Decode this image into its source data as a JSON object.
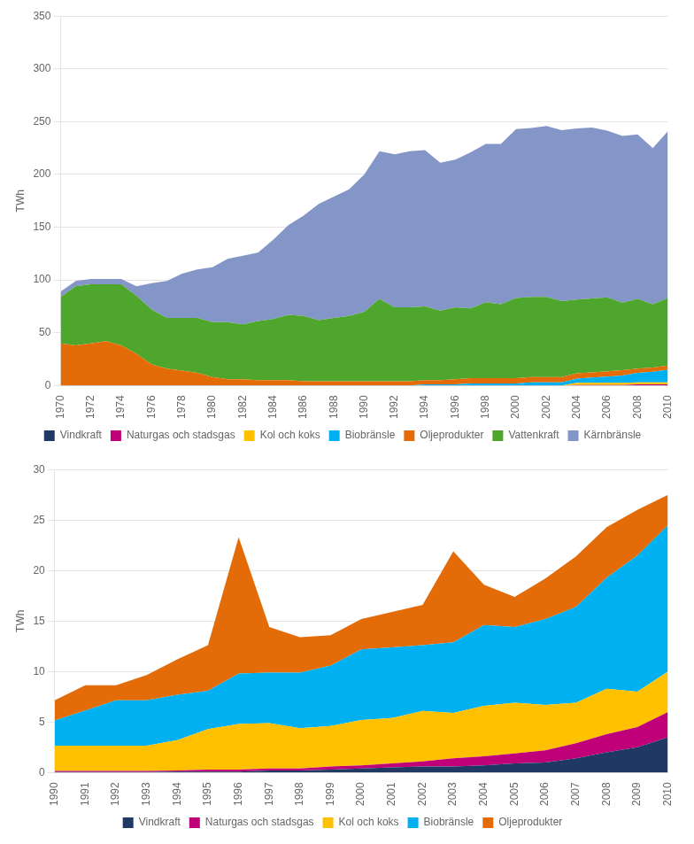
{
  "chart_data": [
    {
      "type": "area",
      "stacked": true,
      "ylabel": "TWh",
      "grid": true,
      "legend": "bottom",
      "x": [
        1970,
        1971,
        1972,
        1973,
        1974,
        1975,
        1976,
        1977,
        1978,
        1979,
        1980,
        1981,
        1982,
        1983,
        1984,
        1985,
        1986,
        1987,
        1988,
        1989,
        1990,
        1991,
        1992,
        1993,
        1994,
        1995,
        1996,
        1997,
        1998,
        1999,
        2000,
        2001,
        2002,
        2003,
        2004,
        2005,
        2006,
        2007,
        2008,
        2009,
        2010
      ],
      "series": [
        {
          "name": "Vindkraft",
          "color": "#1f3864",
          "values": [
            0,
            0,
            0,
            0,
            0,
            0,
            0,
            0,
            0,
            0,
            0,
            0,
            0,
            0,
            0,
            0,
            0,
            0,
            0,
            0,
            0,
            0,
            0,
            0,
            0,
            0,
            0,
            0,
            0,
            0,
            0,
            0,
            0,
            0,
            0,
            0,
            0,
            0,
            0,
            0,
            0
          ]
        },
        {
          "name": "Naturgas och stadsgas",
          "color": "#c00078",
          "values": [
            0,
            0,
            0,
            0,
            0,
            0,
            0,
            0,
            0,
            0,
            0,
            0,
            0,
            0,
            0,
            0,
            0,
            0,
            0,
            0,
            0,
            0,
            0,
            0,
            0,
            0,
            0,
            0,
            0,
            0,
            0,
            0,
            0,
            0,
            0.5,
            0.5,
            0.5,
            0.5,
            1,
            1,
            1
          ]
        },
        {
          "name": "Kol och koks",
          "color": "#ffc000",
          "values": [
            0,
            0,
            0,
            0,
            0,
            0,
            0,
            0,
            0,
            0,
            0,
            0,
            0,
            0,
            0,
            0,
            0,
            0,
            0,
            0,
            0,
            0,
            0,
            0,
            0,
            0,
            0,
            0,
            0,
            0,
            0,
            0,
            0,
            0,
            2,
            2,
            2,
            2,
            2,
            2,
            2
          ]
        },
        {
          "name": "Biobränsle",
          "color": "#00b0f0",
          "values": [
            0,
            0,
            0,
            0,
            0,
            0,
            0,
            0,
            0,
            0,
            0,
            0,
            0,
            0,
            0,
            0,
            0,
            0,
            0,
            0,
            0,
            0,
            0,
            0,
            1,
            1,
            1,
            2,
            2,
            2,
            2,
            3,
            3,
            3,
            4,
            5,
            6,
            7,
            9,
            10,
            12
          ]
        },
        {
          "name": "Oljeprodukter",
          "color": "#e36c09",
          "values": [
            40,
            38,
            40,
            42,
            38,
            30,
            20,
            16,
            14,
            12,
            8,
            6,
            6,
            5,
            5,
            5,
            4,
            4,
            4,
            4,
            4,
            4,
            4,
            4,
            4,
            4,
            5,
            5,
            5,
            5,
            5,
            5,
            5,
            5,
            5,
            5,
            5,
            5,
            4,
            4,
            4
          ]
        },
        {
          "name": "Vattenkraft",
          "color": "#4ea72c",
          "values": [
            44,
            56,
            56,
            54,
            58,
            55,
            52,
            48,
            50,
            52,
            52,
            54,
            52,
            56,
            58,
            62,
            62,
            58,
            60,
            62,
            66,
            78,
            70,
            70,
            70,
            66,
            68,
            66,
            72,
            70,
            76,
            76,
            76,
            72,
            70,
            70,
            70,
            64,
            66,
            60,
            64
          ]
        },
        {
          "name": "Kärnbränsle",
          "color": "#8496c8",
          "values": [
            5,
            5,
            5,
            5,
            5,
            9,
            25,
            35,
            42,
            46,
            52,
            60,
            65,
            65,
            75,
            85,
            95,
            110,
            115,
            120,
            130,
            140,
            145,
            148,
            148,
            140,
            140,
            148,
            150,
            152,
            160,
            160,
            162,
            162,
            162,
            162,
            158,
            158,
            156,
            148,
            158
          ]
        }
      ],
      "xlim": [
        1970,
        2010
      ],
      "xticks": [
        1970,
        1972,
        1974,
        1976,
        1978,
        1980,
        1982,
        1984,
        1986,
        1988,
        1990,
        1992,
        1994,
        1996,
        1998,
        2000,
        2002,
        2004,
        2006,
        2008,
        2010
      ],
      "ylim": [
        0,
        350
      ],
      "yticks": [
        0,
        50,
        100,
        150,
        200,
        250,
        300,
        350
      ]
    },
    {
      "type": "area",
      "stacked": true,
      "ylabel": "TWh",
      "grid": true,
      "legend": "bottom",
      "x": [
        1990,
        1991,
        1992,
        1993,
        1994,
        1995,
        1996,
        1997,
        1998,
        1999,
        2000,
        2001,
        2002,
        2003,
        2004,
        2005,
        2006,
        2007,
        2008,
        2009,
        2010
      ],
      "series": [
        {
          "name": "Vindkraft",
          "color": "#1f3864",
          "values": [
            0.05,
            0.05,
            0.05,
            0.05,
            0.1,
            0.1,
            0.1,
            0.2,
            0.2,
            0.3,
            0.4,
            0.5,
            0.6,
            0.6,
            0.7,
            0.9,
            1.0,
            1.4,
            2.0,
            2.5,
            3.5
          ]
        },
        {
          "name": "Naturgas och stadsgas",
          "color": "#c00078",
          "values": [
            0.1,
            0.1,
            0.1,
            0.1,
            0.1,
            0.2,
            0.2,
            0.2,
            0.2,
            0.3,
            0.3,
            0.4,
            0.5,
            0.8,
            0.9,
            1.0,
            1.2,
            1.5,
            1.8,
            2.0,
            2.5
          ]
        },
        {
          "name": "Kol och koks",
          "color": "#ffc000",
          "values": [
            2.5,
            2.5,
            2.5,
            2.5,
            3.0,
            4.0,
            4.5,
            4.5,
            4.0,
            4.0,
            4.5,
            4.5,
            5.0,
            4.5,
            5.0,
            5.0,
            4.5,
            4.0,
            4.5,
            3.5,
            4.0
          ]
        },
        {
          "name": "Biobränsle",
          "color": "#00b0f0",
          "values": [
            2.5,
            3.5,
            4.5,
            4.5,
            4.5,
            3.8,
            5.0,
            5.0,
            5.5,
            6.0,
            7.0,
            7.0,
            6.5,
            7.0,
            8.0,
            7.5,
            8.5,
            9.5,
            11.0,
            13.5,
            14.5
          ]
        },
        {
          "name": "Oljeprodukter",
          "color": "#e36c09",
          "values": [
            2.0,
            2.5,
            1.5,
            2.5,
            3.5,
            4.5,
            13.5,
            4.5,
            3.5,
            3.0,
            3.0,
            3.5,
            4.0,
            9.0,
            4.0,
            3.0,
            4.0,
            5.0,
            5.0,
            4.5,
            3.0
          ]
        }
      ],
      "xlim": [
        1990,
        2010
      ],
      "xticks": [
        1990,
        1991,
        1992,
        1993,
        1994,
        1995,
        1996,
        1997,
        1998,
        1999,
        2000,
        2001,
        2002,
        2003,
        2004,
        2005,
        2006,
        2007,
        2008,
        2009,
        2010
      ],
      "ylim": [
        0,
        30
      ],
      "yticks": [
        0,
        5,
        10,
        15,
        20,
        25,
        30
      ]
    }
  ]
}
